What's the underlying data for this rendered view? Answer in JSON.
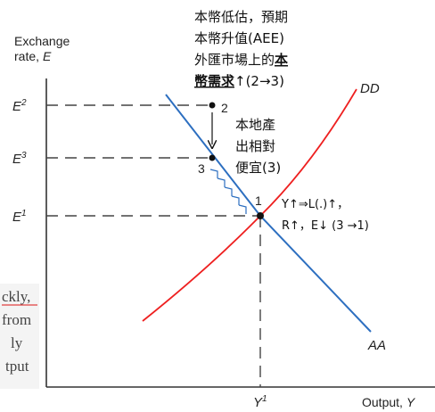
{
  "axes": {
    "y_label_line1": "Exchange",
    "y_label_line2": "rate,",
    "y_label_var": "E",
    "x_label": "Output,",
    "x_label_var": "Y",
    "tick_E2": "E",
    "tick_E2_sup": "2",
    "tick_E3": "E",
    "tick_E3_sup": "3",
    "tick_E1": "E",
    "tick_E1_sup": "1",
    "tick_Y1": "Y",
    "tick_Y1_sup": "1"
  },
  "curves": {
    "dd_label": "DD",
    "aa_label": "AA",
    "dd_color": "#ee2020",
    "aa_color": "#2d6fc0",
    "guide_color": "#444444"
  },
  "points": {
    "p1": "1",
    "p2": "2",
    "p3": "3"
  },
  "annotations": {
    "top_line1": "本幣低估，預期",
    "top_line2": "本幣升值(AEE)",
    "top_line3_pre": "外匯市場上的",
    "top_line3_bold": "本",
    "top_line4_bold": "幣需求",
    "top_line4_post": "↑(2→3)",
    "mid_line1": "本地產",
    "mid_line2": "出相對",
    "mid_line3": "便宜(3)",
    "right_line1": "Y↑⇒L(.)↑，",
    "right_line2": "R↑，E↓ (3 →1)"
  },
  "background_text": {
    "line1": "ckly,",
    "line2": "from",
    "line3": "ly",
    "line4": "tput"
  }
}
